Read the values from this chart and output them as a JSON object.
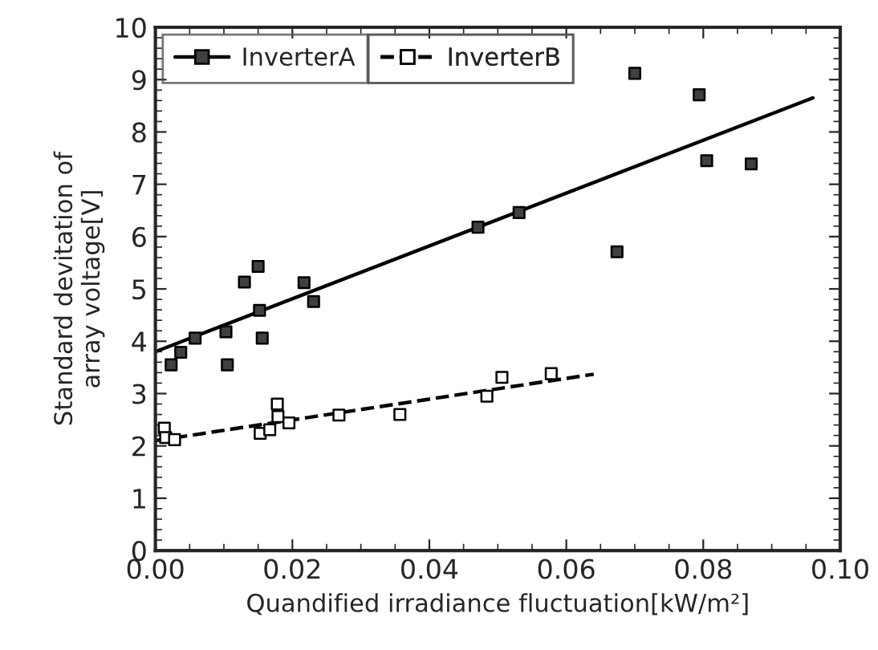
{
  "chart_data": {
    "type": "scatter",
    "xlabel": "Quandified irradiance fluctuation[kW/m²]",
    "ylabel": "Standard devitation of\narray voltage[V]",
    "xlim": [
      0,
      0.1
    ],
    "ylim": [
      0,
      10
    ],
    "xticks": [
      {
        "value": 0,
        "label": "0.00"
      },
      {
        "value": 0.02,
        "label": "0.02"
      },
      {
        "value": 0.04,
        "label": "0.04"
      },
      {
        "value": 0.06,
        "label": "0.06"
      },
      {
        "value": 0.08,
        "label": "0.08"
      },
      {
        "value": 0.1,
        "label": "0.10"
      }
    ],
    "yticks": [
      0,
      1,
      2,
      3,
      4,
      5,
      6,
      7,
      8,
      9,
      10
    ],
    "grid": false,
    "legend": "top left",
    "series": [
      {
        "name": "InverterA",
        "marker": "square",
        "color": "#404040",
        "x": [
          0.0023,
          0.0037,
          0.0058,
          0.0103,
          0.0105,
          0.013,
          0.015,
          0.0152,
          0.0156,
          0.0217,
          0.0231,
          0.0471,
          0.0531,
          0.0674,
          0.07,
          0.0794,
          0.0805,
          0.087
        ],
        "values": [
          3.55,
          3.79,
          4.06,
          4.18,
          3.55,
          5.13,
          5.43,
          4.59,
          4.06,
          5.12,
          4.76,
          6.18,
          6.46,
          5.71,
          9.12,
          8.71,
          7.45,
          7.39
        ]
      },
      {
        "type": "line",
        "marker": "none",
        "color": "#000000",
        "line_style": "solid",
        "x": [
          0,
          0.096
        ],
        "values": [
          3.8,
          8.65
        ]
      },
      {
        "name": "InverterB",
        "marker": "square",
        "color": "#ffffff",
        "x": [
          0.0013,
          0.0015,
          0.0028,
          0.0153,
          0.0167,
          0.0178,
          0.0179,
          0.0195,
          0.0268,
          0.0357,
          0.0484,
          0.0506,
          0.0578
        ],
        "values": [
          2.34,
          2.16,
          2.12,
          2.24,
          2.31,
          2.8,
          2.56,
          2.44,
          2.59,
          2.6,
          2.95,
          3.31,
          3.38
        ]
      },
      {
        "type": "line",
        "marker": "none",
        "color": "#000000",
        "line_style": "dashed",
        "x": [
          0,
          0.064
        ],
        "values": [
          2.1,
          3.37
        ]
      }
    ]
  }
}
